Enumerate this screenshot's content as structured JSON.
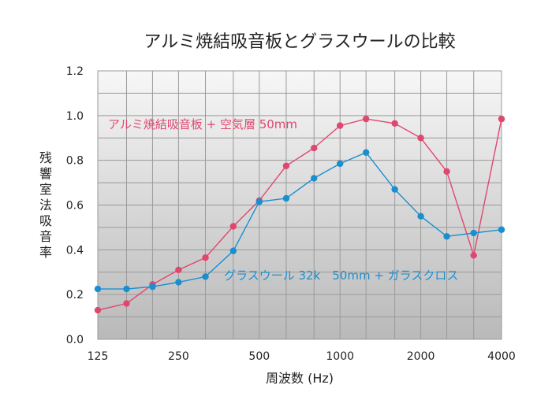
{
  "chart_data": {
    "type": "line",
    "title": "アルミ焼結吸音板とグラスウールの比較",
    "xlabel": "周波数 (Hz)",
    "ylabel": "残響室法吸音率",
    "x_scale": "log",
    "x_tick_labels": [
      "125",
      "250",
      "500",
      "1000",
      "2000",
      "4000"
    ],
    "x_tick_values": [
      125,
      250,
      500,
      1000,
      2000,
      4000
    ],
    "y_ticks": [
      "0.0",
      "0.2",
      "0.4",
      "0.6",
      "0.8",
      "1.0",
      "1.2"
    ],
    "ylim": [
      0,
      1.2
    ],
    "xlim": [
      125,
      4000
    ],
    "grid": true,
    "x": [
      125,
      160,
      200,
      250,
      315,
      400,
      500,
      630,
      800,
      1000,
      1250,
      1600,
      2000,
      2500,
      3150,
      4000
    ],
    "series": [
      {
        "name": "アルミ焼結吸音板 + 空気層 50mm",
        "color": "#e0476f",
        "values": [
          0.13,
          0.16,
          0.245,
          0.31,
          0.365,
          0.505,
          0.62,
          0.775,
          0.855,
          0.955,
          0.985,
          0.965,
          0.9,
          0.75,
          0.375,
          0.985
        ]
      },
      {
        "name": "グラスウール 32k　50mm + ガラスクロス",
        "color": "#1a8fd0",
        "values": [
          0.225,
          0.225,
          0.235,
          0.255,
          0.28,
          0.395,
          0.615,
          0.63,
          0.72,
          0.785,
          0.835,
          0.67,
          0.55,
          0.46,
          0.475,
          0.49
        ]
      }
    ]
  }
}
